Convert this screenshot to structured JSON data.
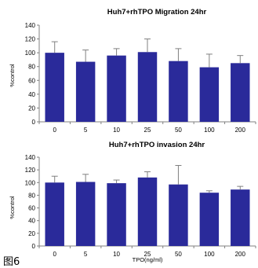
{
  "figure_label": "图6",
  "chart_data": [
    {
      "type": "bar",
      "title": "Huh7+rhTPO Migration 24hr",
      "xlabel": "",
      "ylabel": "%control",
      "categories": [
        "0",
        "5",
        "10",
        "25",
        "50",
        "100",
        "200"
      ],
      "values": [
        100,
        87,
        96,
        101,
        88,
        79,
        85
      ],
      "error": [
        16,
        17,
        10,
        19,
        18,
        19,
        11
      ],
      "ylim": [
        0,
        140
      ],
      "yticks": [
        0,
        20,
        40,
        60,
        80,
        100,
        120,
        140
      ],
      "color": "#2a2a9a",
      "grid": false,
      "legend": "none"
    },
    {
      "type": "bar",
      "title": "Huh7+rhTPO invasion 24hr",
      "xlabel": "TPO(ng/ml)",
      "ylabel": "%control",
      "categories": [
        "0",
        "5",
        "10",
        "25",
        "50",
        "100",
        "200"
      ],
      "values": [
        100,
        101,
        99,
        108,
        97,
        84,
        89
      ],
      "error": [
        10,
        12,
        5,
        9,
        30,
        3,
        5
      ],
      "ylim": [
        0,
        140
      ],
      "yticks": [
        0,
        20,
        40,
        60,
        80,
        100,
        120,
        140
      ],
      "color": "#2a2a9a",
      "grid": false,
      "legend": "none"
    }
  ]
}
